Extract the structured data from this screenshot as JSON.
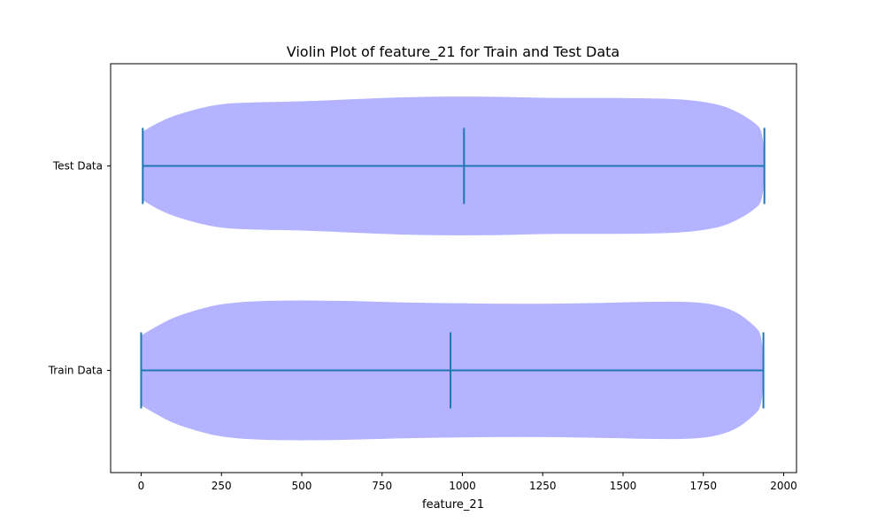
{
  "chart_data": {
    "type": "violin",
    "orientation": "horizontal",
    "title": "Violin Plot of feature_21 for Train and Test Data",
    "xlabel": "feature_21",
    "ylabel": "",
    "xlim": [
      -95,
      2040
    ],
    "xticks": [
      0,
      250,
      500,
      750,
      1000,
      1250,
      1500,
      1750,
      2000
    ],
    "categories": [
      "Train Data",
      "Test Data"
    ],
    "fill_color": "#b3b3ff",
    "line_color": "#1f77b4",
    "series": [
      {
        "name": "Train Data",
        "min": 0,
        "median": 963,
        "max": 1937,
        "density": [
          [
            0,
            0.49
          ],
          [
            50,
            0.62
          ],
          [
            100,
            0.74
          ],
          [
            175,
            0.85
          ],
          [
            250,
            0.93
          ],
          [
            350,
            0.97
          ],
          [
            500,
            0.98
          ],
          [
            650,
            0.97
          ],
          [
            800,
            0.95
          ],
          [
            950,
            0.94
          ],
          [
            1100,
            0.93
          ],
          [
            1250,
            0.93
          ],
          [
            1400,
            0.94
          ],
          [
            1500,
            0.95
          ],
          [
            1600,
            0.96
          ],
          [
            1700,
            0.96
          ],
          [
            1780,
            0.93
          ],
          [
            1850,
            0.83
          ],
          [
            1900,
            0.66
          ],
          [
            1937,
            0.49
          ]
        ]
      },
      {
        "name": "Test Data",
        "min": 5,
        "median": 1005,
        "max": 1940,
        "density": [
          [
            5,
            0.48
          ],
          [
            50,
            0.6
          ],
          [
            100,
            0.7
          ],
          [
            175,
            0.8
          ],
          [
            250,
            0.87
          ],
          [
            350,
            0.89
          ],
          [
            500,
            0.9
          ],
          [
            650,
            0.93
          ],
          [
            800,
            0.96
          ],
          [
            950,
            0.97
          ],
          [
            1100,
            0.97
          ],
          [
            1250,
            0.95
          ],
          [
            1400,
            0.95
          ],
          [
            1550,
            0.95
          ],
          [
            1700,
            0.93
          ],
          [
            1800,
            0.86
          ],
          [
            1850,
            0.77
          ],
          [
            1900,
            0.64
          ],
          [
            1940,
            0.48
          ]
        ]
      }
    ]
  }
}
